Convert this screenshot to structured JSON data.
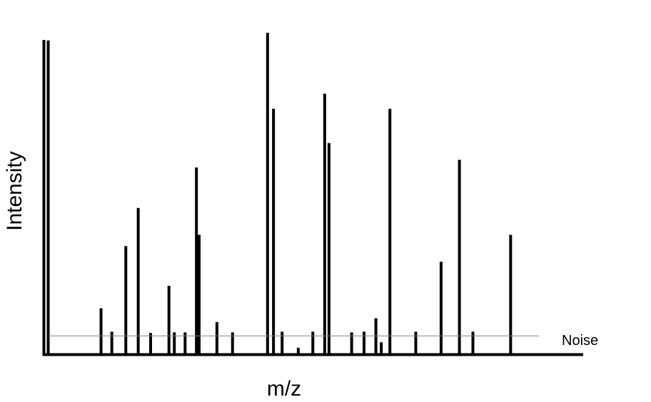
{
  "chart_data": {
    "type": "bar",
    "title": "",
    "xlabel": "m/z",
    "ylabel": "Intensity",
    "ylim": [
      0,
      100
    ],
    "grid": false,
    "colors": {
      "bars": "#000000",
      "axes": "#000000",
      "noise_line": "#6f8a99"
    },
    "noise": {
      "label": "Noise",
      "level": 5.5
    },
    "peaks": [
      {
        "x": 1.0,
        "y": 97.6
      },
      {
        "x": 10.8,
        "y": 14.1
      },
      {
        "x": 12.8,
        "y": 6.8
      },
      {
        "x": 15.4,
        "y": 33.5
      },
      {
        "x": 17.7,
        "y": 45.4
      },
      {
        "x": 20.0,
        "y": 6.4
      },
      {
        "x": 23.4,
        "y": 21.1
      },
      {
        "x": 24.4,
        "y": 6.6
      },
      {
        "x": 26.4,
        "y": 6.6
      },
      {
        "x": 28.5,
        "y": 58.0
      },
      {
        "x": 29.0,
        "y": 37.0
      },
      {
        "x": 32.3,
        "y": 9.8
      },
      {
        "x": 35.2,
        "y": 6.6
      },
      {
        "x": 41.7,
        "y": 100.0
      },
      {
        "x": 42.8,
        "y": 76.3
      },
      {
        "x": 44.4,
        "y": 6.8
      },
      {
        "x": 47.4,
        "y": 1.8
      },
      {
        "x": 50.1,
        "y": 6.8
      },
      {
        "x": 52.3,
        "y": 81.0
      },
      {
        "x": 53.1,
        "y": 65.6
      },
      {
        "x": 57.3,
        "y": 6.6
      },
      {
        "x": 59.6,
        "y": 6.8
      },
      {
        "x": 61.8,
        "y": 11.0
      },
      {
        "x": 62.8,
        "y": 3.5
      },
      {
        "x": 64.4,
        "y": 76.3
      },
      {
        "x": 69.2,
        "y": 6.8
      },
      {
        "x": 73.9,
        "y": 28.6
      },
      {
        "x": 77.3,
        "y": 60.4
      },
      {
        "x": 79.8,
        "y": 6.8
      },
      {
        "x": 86.8,
        "y": 37.0
      }
    ]
  }
}
